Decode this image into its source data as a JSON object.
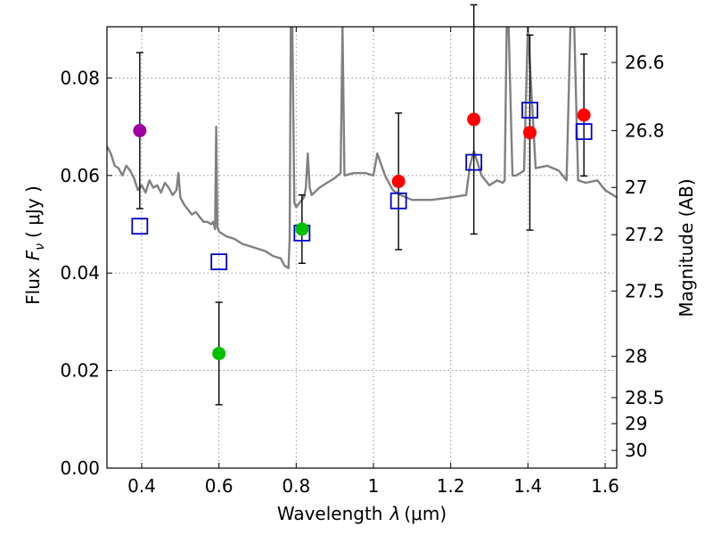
{
  "chart_data": {
    "type": "scatter",
    "xlabel": "Wavelength",
    "xlabel_symbol": "λ",
    "xlabel_unit": "(μm)",
    "ylabel": "Flux",
    "ylabel_symbol": "F",
    "ylabel_subscript": "ν",
    "ylabel_unit": "( μJy )",
    "y2label": "Magnitude (AB)",
    "xlim": [
      0.31,
      1.63
    ],
    "ylim": [
      0.0,
      0.0905
    ],
    "grid": true,
    "xticks": [
      {
        "value": 0.4,
        "label": "0.4"
      },
      {
        "value": 0.6,
        "label": "0.6"
      },
      {
        "value": 0.8,
        "label": "0.8"
      },
      {
        "value": 1.0,
        "label": "1"
      },
      {
        "value": 1.2,
        "label": "1.2"
      },
      {
        "value": 1.4,
        "label": "1.4"
      },
      {
        "value": 1.6,
        "label": "1.6"
      }
    ],
    "yticks": [
      {
        "value": 0.0,
        "label": "0.00"
      },
      {
        "value": 0.02,
        "label": "0.02"
      },
      {
        "value": 0.04,
        "label": "0.04"
      },
      {
        "value": 0.06,
        "label": "0.06"
      },
      {
        "value": 0.08,
        "label": "0.08"
      }
    ],
    "magnitude_ticks": [
      {
        "value": 26.6,
        "label": "26.6"
      },
      {
        "value": 26.8,
        "label": "26.8"
      },
      {
        "value": 27.0,
        "label": "27"
      },
      {
        "value": 27.2,
        "label": "27.2"
      },
      {
        "value": 27.5,
        "label": "27.5"
      },
      {
        "value": 28.0,
        "label": "28"
      },
      {
        "value": 28.5,
        "label": "28.5"
      },
      {
        "value": 29.0,
        "label": "29"
      },
      {
        "value": 30.0,
        "label": "30"
      }
    ],
    "observed_points": [
      {
        "x": 0.395,
        "y": 0.0692,
        "yerr": 0.016,
        "color": "#a000a0"
      },
      {
        "x": 0.6,
        "y": 0.0235,
        "yerr": 0.0105,
        "color": "#00c000"
      },
      {
        "x": 0.815,
        "y": 0.049,
        "yerr": 0.007,
        "color": "#00c000"
      },
      {
        "x": 1.065,
        "y": 0.0588,
        "yerr": 0.014,
        "color": "#ff0000"
      },
      {
        "x": 1.26,
        "y": 0.0715,
        "yerr": 0.0235,
        "color": "#ff0000"
      },
      {
        "x": 1.405,
        "y": 0.0688,
        "yerr": 0.02,
        "color": "#ff0000"
      },
      {
        "x": 1.545,
        "y": 0.0724,
        "yerr": 0.0125,
        "color": "#ff0000"
      }
    ],
    "model_points": [
      {
        "x": 0.395,
        "y": 0.0496
      },
      {
        "x": 0.6,
        "y": 0.0423
      },
      {
        "x": 0.815,
        "y": 0.0482
      },
      {
        "x": 1.065,
        "y": 0.0548
      },
      {
        "x": 1.26,
        "y": 0.0627
      },
      {
        "x": 1.405,
        "y": 0.0734
      },
      {
        "x": 1.545,
        "y": 0.069
      }
    ],
    "model_spectrum": {
      "color": "#808080",
      "x": [
        0.31,
        0.32,
        0.33,
        0.34,
        0.35,
        0.36,
        0.37,
        0.38,
        0.39,
        0.4,
        0.41,
        0.42,
        0.43,
        0.44,
        0.45,
        0.46,
        0.47,
        0.48,
        0.49,
        0.495,
        0.5,
        0.51,
        0.52,
        0.53,
        0.54,
        0.55,
        0.56,
        0.57,
        0.58,
        0.585,
        0.59,
        0.593,
        0.596,
        0.6,
        0.62,
        0.64,
        0.66,
        0.68,
        0.7,
        0.72,
        0.74,
        0.76,
        0.77,
        0.78,
        0.783,
        0.786,
        0.79,
        0.795,
        0.8,
        0.82,
        0.825,
        0.83,
        0.835,
        0.84,
        0.86,
        0.88,
        0.9,
        0.915,
        0.92,
        0.925,
        0.95,
        0.98,
        1.0,
        1.01,
        1.03,
        1.05,
        1.07,
        1.1,
        1.15,
        1.2,
        1.24,
        1.25,
        1.26,
        1.28,
        1.3,
        1.32,
        1.335,
        1.34,
        1.345,
        1.35,
        1.36,
        1.37,
        1.39,
        1.4,
        1.42,
        1.45,
        1.48,
        1.5,
        1.51,
        1.52,
        1.53,
        1.55,
        1.58,
        1.6,
        1.63
      ],
      "y": [
        0.066,
        0.0645,
        0.062,
        0.0615,
        0.06,
        0.062,
        0.061,
        0.0595,
        0.057,
        0.058,
        0.0565,
        0.059,
        0.0575,
        0.058,
        0.0565,
        0.0585,
        0.0575,
        0.056,
        0.057,
        0.0605,
        0.0555,
        0.054,
        0.053,
        0.052,
        0.0525,
        0.0515,
        0.0505,
        0.0505,
        0.05,
        0.0505,
        0.049,
        0.07,
        0.0495,
        0.0485,
        0.0475,
        0.047,
        0.046,
        0.0455,
        0.045,
        0.0445,
        0.0435,
        0.043,
        0.0415,
        0.041,
        0.047,
        0.0905,
        0.0905,
        0.0545,
        0.0535,
        0.0555,
        0.0575,
        0.0645,
        0.0575,
        0.056,
        0.0575,
        0.0585,
        0.0595,
        0.0605,
        0.0905,
        0.06,
        0.0605,
        0.0605,
        0.06,
        0.0645,
        0.06,
        0.057,
        0.056,
        0.055,
        0.055,
        0.0555,
        0.056,
        0.062,
        0.065,
        0.06,
        0.058,
        0.059,
        0.0585,
        0.059,
        0.0905,
        0.0905,
        0.06,
        0.06,
        0.061,
        0.0905,
        0.0615,
        0.062,
        0.061,
        0.059,
        0.0905,
        0.0905,
        0.059,
        0.0585,
        0.059,
        0.057,
        0.0555
      ]
    }
  }
}
